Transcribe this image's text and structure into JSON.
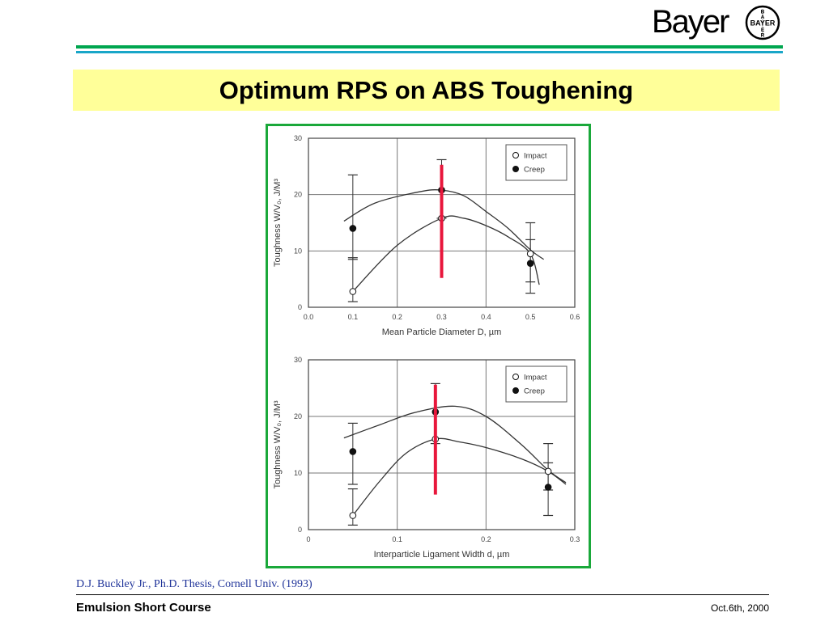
{
  "logo": {
    "word": "Bayer",
    "seal_text": "BAYER"
  },
  "slide": {
    "title": "Optimum RPS on ABS Toughening",
    "citation": "D.J. Buckley Jr., Ph.D. Thesis, Cornell Univ. (1993)",
    "footer_left": "Emulsion Short Course",
    "footer_right": "Oct.6th, 2000"
  },
  "colors": {
    "accent_green": "#00a64f",
    "accent_blue": "#19a6c8",
    "title_band": "#ffff99",
    "frame": "#1aa83a",
    "marker_line": "#e8173c",
    "citation": "#1f3399"
  },
  "chart_data": [
    {
      "type": "scatter",
      "xlabel": "Mean Particle Diameter D, µm",
      "ylabel": "Toughness W/V₀, J/M³",
      "xlim": [
        0.0,
        0.6
      ],
      "ylim": [
        0,
        30
      ],
      "xticks": [
        "0.0",
        "0.1",
        "0.2",
        "0.3",
        "0.4",
        "0.5",
        "0.6"
      ],
      "yticks": [
        "0",
        "10",
        "20",
        "30"
      ],
      "grid": true,
      "legend": "top-right",
      "series": [
        {
          "name": "Impact",
          "marker": "open-circle",
          "points": [
            {
              "x": 0.1,
              "y": 2.8,
              "err": [
                1.0,
                8.8
              ]
            },
            {
              "x": 0.3,
              "y": 15.8,
              "err": [
                15.8,
                15.8
              ]
            },
            {
              "x": 0.5,
              "y": 9.5,
              "err": [
                4.5,
                12.0
              ]
            }
          ],
          "curve": [
            [
              0.1,
              2.8
            ],
            [
              0.2,
              11
            ],
            [
              0.3,
              15.8
            ],
            [
              0.35,
              15.8
            ],
            [
              0.4,
              14.5
            ],
            [
              0.45,
              12.5
            ],
            [
              0.5,
              9.5
            ],
            [
              0.52,
              4.0
            ]
          ]
        },
        {
          "name": "Creep",
          "marker": "filled-circle",
          "points": [
            {
              "x": 0.1,
              "y": 14.0,
              "err": [
                8.5,
                23.5
              ]
            },
            {
              "x": 0.3,
              "y": 20.8,
              "err": [
                15.8,
                26.2
              ]
            },
            {
              "x": 0.5,
              "y": 7.8,
              "err": [
                2.5,
                15.0
              ]
            }
          ],
          "curve": [
            [
              0.08,
              15.3
            ],
            [
              0.15,
              18.5
            ],
            [
              0.25,
              20.5
            ],
            [
              0.3,
              20.8
            ],
            [
              0.35,
              19.8
            ],
            [
              0.4,
              17.0
            ],
            [
              0.45,
              14.0
            ],
            [
              0.5,
              10.2
            ],
            [
              0.53,
              8.5
            ]
          ]
        }
      ],
      "marker_line": {
        "x": 0.3,
        "y": [
          5.2,
          25.3
        ]
      }
    },
    {
      "type": "scatter",
      "xlabel": "Interparticle Ligament Width d, µm",
      "ylabel": "Toughness W/V₀, J/M³",
      "xlim": [
        0.0,
        0.3
      ],
      "ylim": [
        0,
        30
      ],
      "xticks": [
        "0",
        "0.1",
        "0.2",
        "0.3"
      ],
      "yticks": [
        "0",
        "10",
        "20",
        "30"
      ],
      "grid": true,
      "legend": "top-right",
      "series": [
        {
          "name": "Impact",
          "marker": "open-circle",
          "points": [
            {
              "x": 0.05,
              "y": 2.5,
              "err": [
                0.8,
                7.2
              ]
            },
            {
              "x": 0.143,
              "y": 16.0,
              "err": [
                16.0,
                16.0
              ]
            },
            {
              "x": 0.27,
              "y": 10.3,
              "err": [
                7.0,
                15.2
              ]
            }
          ],
          "curve": [
            [
              0.05,
              2.5
            ],
            [
              0.08,
              8.5
            ],
            [
              0.11,
              13.5
            ],
            [
              0.143,
              16.0
            ],
            [
              0.17,
              15.5
            ],
            [
              0.2,
              14.5
            ],
            [
              0.24,
              12.5
            ],
            [
              0.27,
              10.3
            ],
            [
              0.29,
              8.0
            ]
          ]
        },
        {
          "name": "Creep",
          "marker": "filled-circle",
          "points": [
            {
              "x": 0.05,
              "y": 13.8,
              "err": [
                8.0,
                18.8
              ]
            },
            {
              "x": 0.143,
              "y": 20.8,
              "err": [
                15.2,
                25.8
              ]
            },
            {
              "x": 0.27,
              "y": 7.5,
              "err": [
                2.5,
                11.8
              ]
            }
          ],
          "curve": [
            [
              0.04,
              16.2
            ],
            [
              0.08,
              18.5
            ],
            [
              0.12,
              20.7
            ],
            [
              0.165,
              21.8
            ],
            [
              0.2,
              20.0
            ],
            [
              0.24,
              15.0
            ],
            [
              0.27,
              10.5
            ],
            [
              0.29,
              8.3
            ]
          ]
        }
      ],
      "marker_line": {
        "x": 0.143,
        "y": [
          6.2,
          25.6
        ]
      }
    }
  ]
}
